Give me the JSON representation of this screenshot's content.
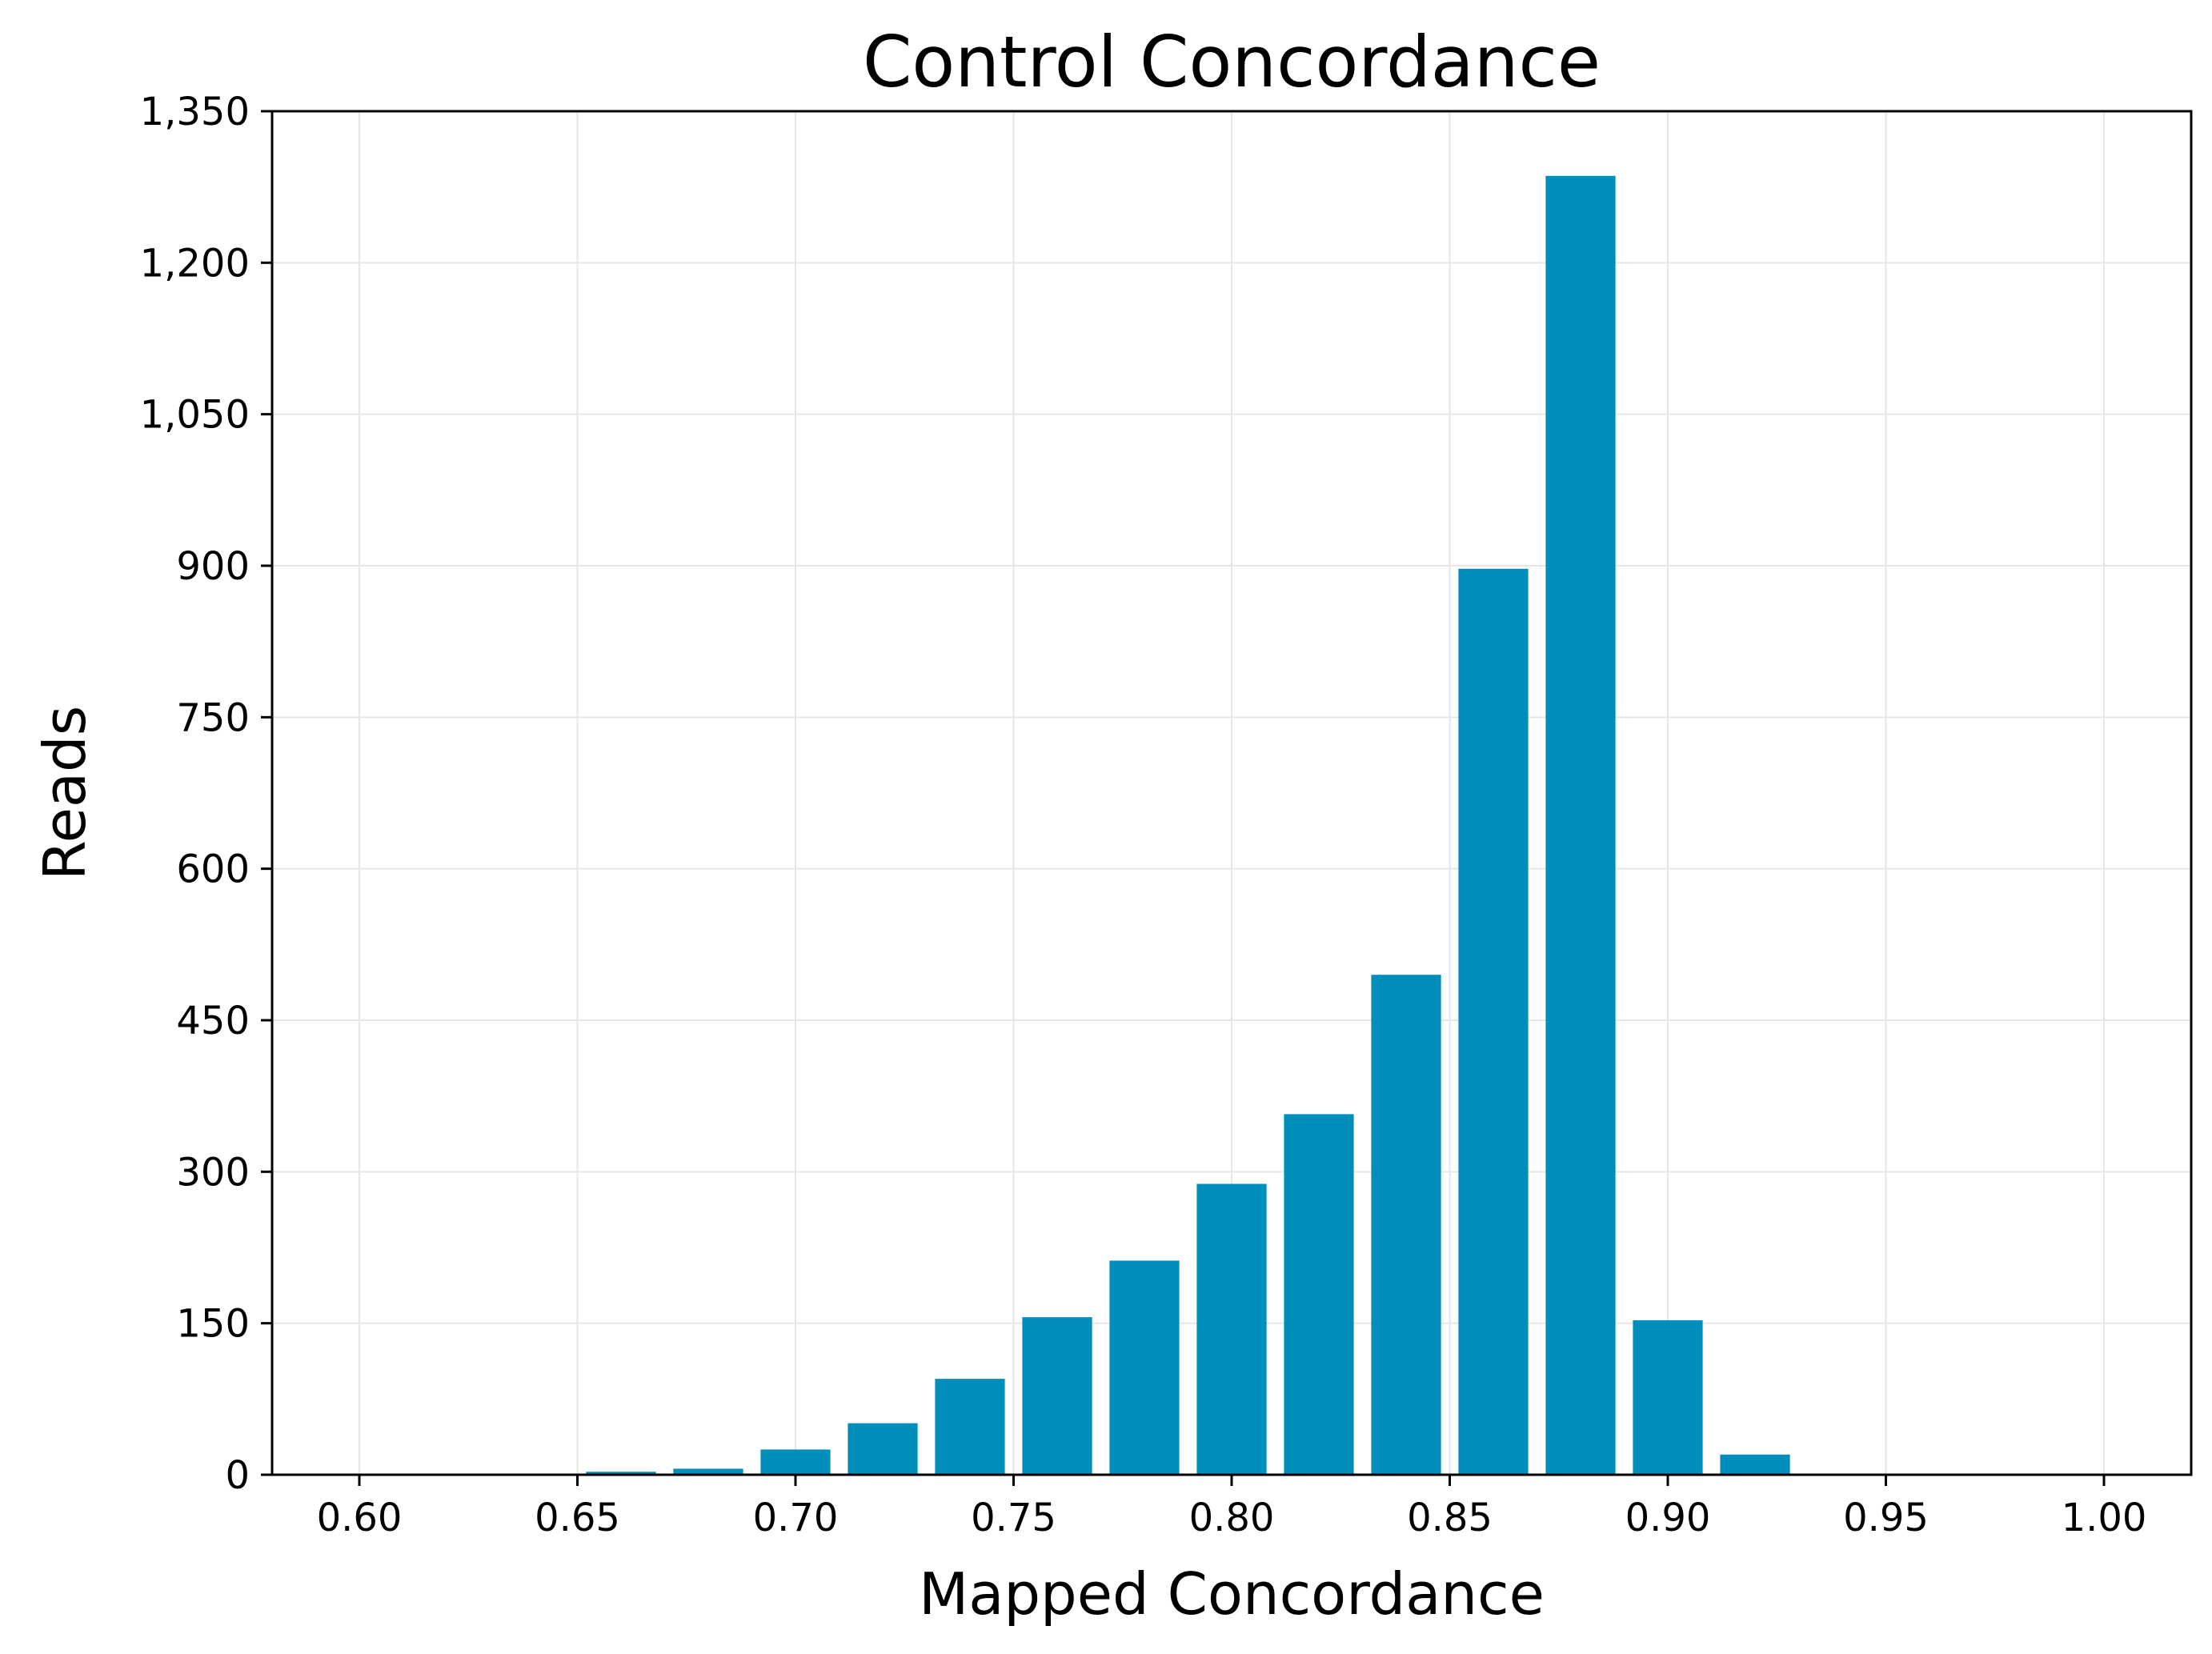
{
  "chart_data": {
    "type": "bar",
    "title": "Control Concordance",
    "xlabel": "Mapped Concordance",
    "ylabel": "Reads",
    "xlim": [
      0.58,
      1.02
    ],
    "ylim": [
      0,
      1350
    ],
    "bar_width": 0.016,
    "xticks": [
      0.6,
      0.65,
      0.7,
      0.75,
      0.8,
      0.85,
      0.9,
      0.95,
      1.0
    ],
    "xtick_labels": [
      "0.60",
      "0.65",
      "0.70",
      "0.75",
      "0.80",
      "0.85",
      "0.90",
      "0.95",
      "1.00"
    ],
    "yticks": [
      0,
      150,
      300,
      450,
      600,
      750,
      900,
      1050,
      1200,
      1350
    ],
    "ytick_labels": [
      "0",
      "150",
      "300",
      "450",
      "600",
      "750",
      "900",
      "1,050",
      "1,200",
      "1,350"
    ],
    "grid": true,
    "bar_color": "#008fba",
    "x": [
      0.66,
      0.68,
      0.7,
      0.72,
      0.74,
      0.76,
      0.78,
      0.8,
      0.82,
      0.84,
      0.86,
      0.88,
      0.9,
      0.92
    ],
    "values": [
      3,
      6,
      25,
      51,
      95,
      156,
      212,
      288,
      357,
      495,
      897,
      1286,
      153,
      20
    ]
  }
}
